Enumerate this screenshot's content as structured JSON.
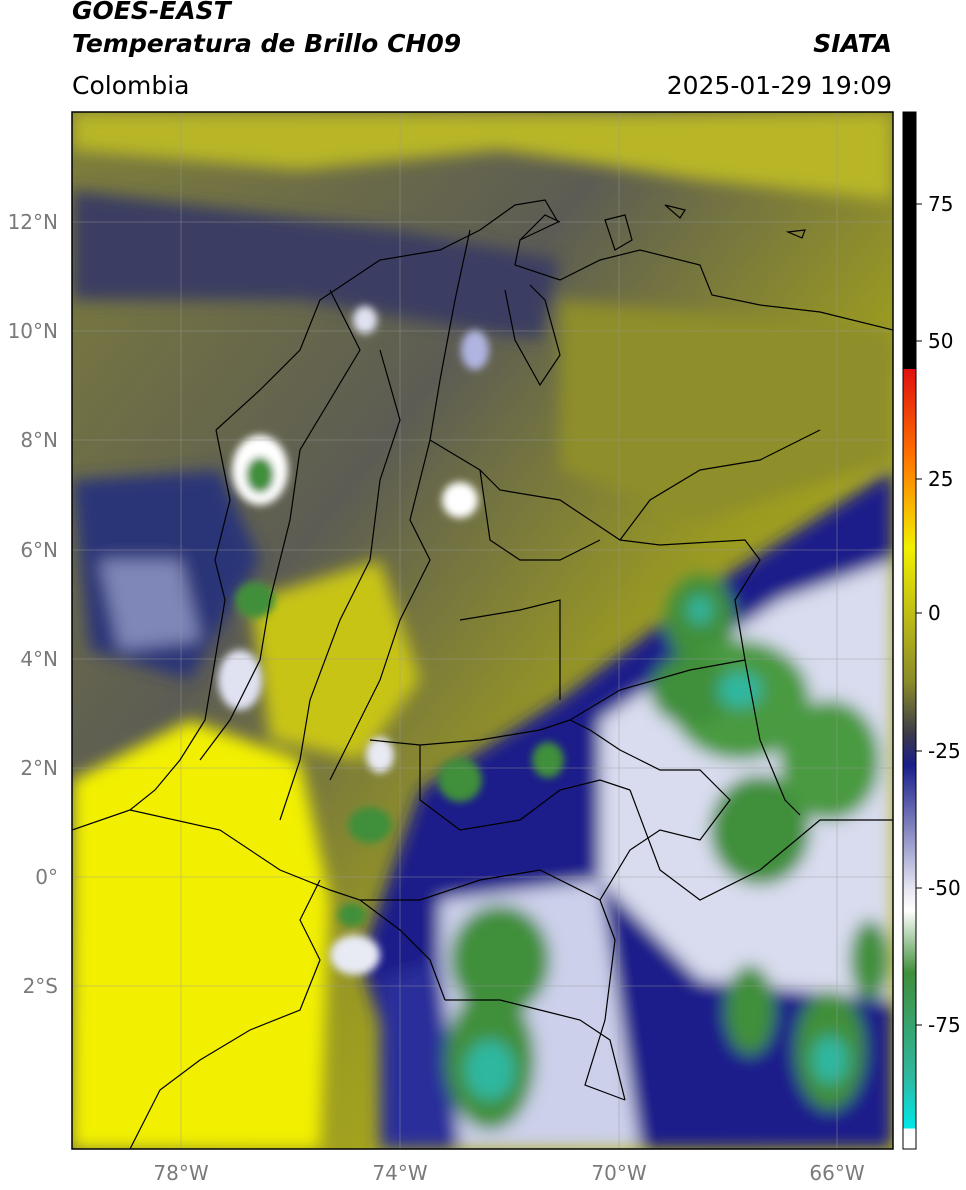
{
  "header": {
    "line1": "GOES-EAST",
    "line2": "Temperatura de Brillo CH09",
    "region": "Colombia",
    "organization": "SIATA",
    "datetime": "2025-01-29 19:09"
  },
  "map": {
    "extent": {
      "lon_min": -80,
      "lon_max": -65,
      "lat_min": -5,
      "lat_max": 14
    },
    "gridlines": true,
    "lat_ticks": [
      {
        "value": 12,
        "label": "12°N"
      },
      {
        "value": 10,
        "label": "10°N"
      },
      {
        "value": 8,
        "label": "8°N"
      },
      {
        "value": 6,
        "label": "6°N"
      },
      {
        "value": 4,
        "label": "4°N"
      },
      {
        "value": 2,
        "label": "2°N"
      },
      {
        "value": 0,
        "label": "0°"
      },
      {
        "value": -2,
        "label": "2°S"
      }
    ],
    "lon_ticks": [
      {
        "value": -78,
        "label": "78°W"
      },
      {
        "value": -74,
        "label": "74°W"
      },
      {
        "value": -70,
        "label": "70°W"
      },
      {
        "value": -66,
        "label": "66°W"
      }
    ],
    "colors": {
      "warm": "#f2f000",
      "olive": "#8a8a2a",
      "navy": "#1a1f8a",
      "white": "#ffffff",
      "green": "#3f8f3a",
      "teal": "#2fb8a0"
    }
  },
  "colorbar": {
    "min": -95,
    "max": 90,
    "ticks": [
      {
        "value": 75,
        "label": "75"
      },
      {
        "value": 50,
        "label": "50"
      },
      {
        "value": 25,
        "label": "25"
      },
      {
        "value": 0,
        "label": "0"
      },
      {
        "value": -25,
        "label": "-25"
      },
      {
        "value": -50,
        "label": "-50"
      },
      {
        "value": -75,
        "label": "-75"
      }
    ]
  }
}
